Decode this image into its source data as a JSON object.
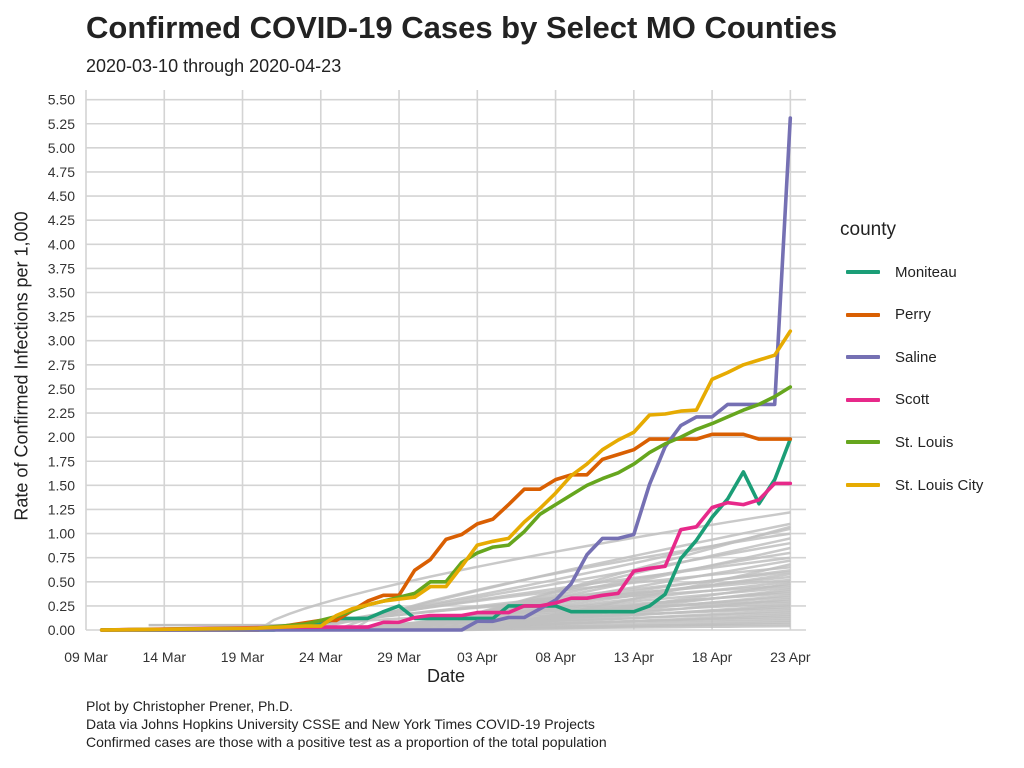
{
  "chart_data": {
    "type": "line",
    "title": "Confirmed COVID-19 Cases by Select MO Counties",
    "subtitle": "2020-03-10 through 2020-04-23",
    "xlabel": "Date",
    "ylabel": "Rate of Confirmed Infections per 1,000",
    "xlim": [
      "2020-03-09",
      "2020-04-24"
    ],
    "ylim": [
      0,
      5.6
    ],
    "x_ticks": [
      "2020-03-09",
      "2020-03-14",
      "2020-03-19",
      "2020-03-24",
      "2020-03-29",
      "2020-04-03",
      "2020-04-08",
      "2020-04-13",
      "2020-04-18",
      "2020-04-23"
    ],
    "x_tick_labels": [
      "09 Mar",
      "14 Mar",
      "19 Mar",
      "24 Mar",
      "29 Mar",
      "03 Apr",
      "08 Apr",
      "13 Apr",
      "18 Apr",
      "23 Apr"
    ],
    "y_ticks": [
      0,
      0.25,
      0.5,
      0.75,
      1,
      1.25,
      1.5,
      1.75,
      2,
      2.25,
      2.5,
      2.75,
      3,
      3.25,
      3.5,
      3.75,
      4,
      4.25,
      4.5,
      4.75,
      5,
      5.25,
      5.5
    ],
    "y_tick_labels": [
      "0.00",
      "0.25",
      "0.50",
      "0.75",
      "1.00",
      "1.25",
      "1.50",
      "1.75",
      "2.00",
      "2.25",
      "2.50",
      "2.75",
      "3.00",
      "3.25",
      "3.50",
      "3.75",
      "4.00",
      "4.25",
      "4.50",
      "4.75",
      "5.00",
      "5.25",
      "5.50"
    ],
    "grid": true,
    "legend_position": "right",
    "legend_title": "county",
    "background_series": {
      "color": "#c0c0c0",
      "note_final_values": [
        1.22,
        1.1,
        1.07,
        1.05,
        1.0,
        0.95,
        0.9,
        0.85,
        0.8,
        0.75,
        0.72,
        0.68,
        0.65,
        0.62,
        0.6,
        0.58,
        0.55,
        0.52,
        0.5,
        0.48,
        0.46,
        0.44,
        0.42,
        0.4,
        0.38,
        0.36,
        0.34,
        0.32,
        0.3,
        0.28,
        0.26,
        0.24,
        0.22,
        0.2,
        0.18,
        0.16,
        0.14,
        0.12,
        0.1,
        0.08,
        0.06,
        0.04
      ]
    },
    "series": [
      {
        "name": "Moniteau",
        "color": "#1b9e77",
        "x": [
          "2020-03-10",
          "2020-03-17",
          "2020-03-21",
          "2020-03-24",
          "2020-03-25",
          "2020-03-26",
          "2020-03-27",
          "2020-03-28",
          "2020-03-29",
          "2020-03-30",
          "2020-04-01",
          "2020-04-02",
          "2020-04-03",
          "2020-04-04",
          "2020-04-05",
          "2020-04-06",
          "2020-04-07",
          "2020-04-08",
          "2020-04-09",
          "2020-04-10",
          "2020-04-11",
          "2020-04-12",
          "2020-04-13",
          "2020-04-14",
          "2020-04-15",
          "2020-04-16",
          "2020-04-17",
          "2020-04-18",
          "2020-04-19",
          "2020-04-20",
          "2020-04-21",
          "2020-04-22",
          "2020-04-23"
        ],
        "y": [
          0,
          0,
          0,
          0.06,
          0.12,
          0.12,
          0.12,
          0.19,
          0.25,
          0.12,
          0.12,
          0.12,
          0.12,
          0.12,
          0.25,
          0.25,
          0.25,
          0.25,
          0.19,
          0.19,
          0.19,
          0.19,
          0.19,
          0.25,
          0.37,
          0.74,
          0.93,
          1.17,
          1.36,
          1.64,
          1.31,
          1.56,
          1.98
        ]
      },
      {
        "name": "Perry",
        "color": "#d95f02",
        "x": [
          "2020-03-10",
          "2020-03-20",
          "2020-03-24",
          "2020-03-25",
          "2020-03-26",
          "2020-03-27",
          "2020-03-28",
          "2020-03-29",
          "2020-03-30",
          "2020-03-31",
          "2020-04-01",
          "2020-04-02",
          "2020-04-03",
          "2020-04-04",
          "2020-04-05",
          "2020-04-06",
          "2020-04-07",
          "2020-04-08",
          "2020-04-09",
          "2020-04-10",
          "2020-04-11",
          "2020-04-12",
          "2020-04-13",
          "2020-04-14",
          "2020-04-15",
          "2020-04-16",
          "2020-04-17",
          "2020-04-18",
          "2020-04-19",
          "2020-04-20",
          "2020-04-21",
          "2020-04-22",
          "2020-04-23"
        ],
        "y": [
          0,
          0,
          0.1,
          0.1,
          0.2,
          0.3,
          0.36,
          0.36,
          0.62,
          0.73,
          0.94,
          0.99,
          1.1,
          1.15,
          1.3,
          1.46,
          1.46,
          1.56,
          1.61,
          1.61,
          1.77,
          1.82,
          1.87,
          1.98,
          1.98,
          1.98,
          1.98,
          2.03,
          2.03,
          2.03,
          1.98,
          1.98,
          1.98
        ]
      },
      {
        "name": "Saline",
        "color": "#7570b3",
        "x": [
          "2020-03-10",
          "2020-03-22",
          "2020-03-28",
          "2020-04-02",
          "2020-04-03",
          "2020-04-04",
          "2020-04-05",
          "2020-04-06",
          "2020-04-07",
          "2020-04-08",
          "2020-04-09",
          "2020-04-10",
          "2020-04-11",
          "2020-04-12",
          "2020-04-13",
          "2020-04-14",
          "2020-04-15",
          "2020-04-16",
          "2020-04-17",
          "2020-04-18",
          "2020-04-19",
          "2020-04-20",
          "2020-04-21",
          "2020-04-22",
          "2020-04-23"
        ],
        "y": [
          0,
          0,
          0,
          0,
          0.09,
          0.09,
          0.13,
          0.13,
          0.22,
          0.31,
          0.48,
          0.78,
          0.95,
          0.95,
          0.99,
          1.51,
          1.9,
          2.12,
          2.21,
          2.21,
          2.34,
          2.34,
          2.34,
          2.34,
          5.31
        ]
      },
      {
        "name": "Scott",
        "color": "#e7298a",
        "x": [
          "2020-03-10",
          "2020-03-22",
          "2020-03-27",
          "2020-03-28",
          "2020-03-29",
          "2020-03-30",
          "2020-03-31",
          "2020-04-02",
          "2020-04-03",
          "2020-04-04",
          "2020-04-05",
          "2020-04-06",
          "2020-04-07",
          "2020-04-08",
          "2020-04-09",
          "2020-04-10",
          "2020-04-11",
          "2020-04-12",
          "2020-04-13",
          "2020-04-14",
          "2020-04-15",
          "2020-04-16",
          "2020-04-17",
          "2020-04-18",
          "2020-04-19",
          "2020-04-20",
          "2020-04-21",
          "2020-04-22",
          "2020-04-23"
        ],
        "y": [
          0,
          0.03,
          0.03,
          0.08,
          0.08,
          0.13,
          0.15,
          0.15,
          0.18,
          0.18,
          0.18,
          0.25,
          0.25,
          0.28,
          0.33,
          0.33,
          0.36,
          0.38,
          0.61,
          0.64,
          0.66,
          1.04,
          1.07,
          1.27,
          1.32,
          1.3,
          1.35,
          1.52,
          1.52
        ]
      },
      {
        "name": "St. Louis",
        "color": "#66a61e",
        "x": [
          "2020-03-10",
          "2020-03-20",
          "2020-03-23",
          "2020-03-24",
          "2020-03-25",
          "2020-03-26",
          "2020-03-27",
          "2020-03-28",
          "2020-03-29",
          "2020-03-30",
          "2020-03-31",
          "2020-04-01",
          "2020-04-02",
          "2020-04-03",
          "2020-04-04",
          "2020-04-05",
          "2020-04-06",
          "2020-04-07",
          "2020-04-08",
          "2020-04-09",
          "2020-04-10",
          "2020-04-11",
          "2020-04-12",
          "2020-04-13",
          "2020-04-14",
          "2020-04-15",
          "2020-04-16",
          "2020-04-17",
          "2020-04-18",
          "2020-04-19",
          "2020-04-20",
          "2020-04-21",
          "2020-04-22",
          "2020-04-23"
        ],
        "y": [
          0,
          0.02,
          0.06,
          0.1,
          0.14,
          0.2,
          0.26,
          0.3,
          0.34,
          0.38,
          0.5,
          0.5,
          0.7,
          0.8,
          0.86,
          0.88,
          1.02,
          1.2,
          1.3,
          1.4,
          1.5,
          1.57,
          1.63,
          1.72,
          1.84,
          1.93,
          2.0,
          2.08,
          2.14,
          2.21,
          2.28,
          2.34,
          2.42,
          2.52
        ]
      },
      {
        "name": "St. Louis City",
        "color": "#e6ab02",
        "x": [
          "2020-03-10",
          "2020-03-20",
          "2020-03-23",
          "2020-03-24",
          "2020-03-25",
          "2020-03-26",
          "2020-03-27",
          "2020-03-28",
          "2020-03-29",
          "2020-03-30",
          "2020-03-31",
          "2020-04-01",
          "2020-04-02",
          "2020-04-03",
          "2020-04-04",
          "2020-04-05",
          "2020-04-06",
          "2020-04-07",
          "2020-04-08",
          "2020-04-09",
          "2020-04-10",
          "2020-04-11",
          "2020-04-12",
          "2020-04-13",
          "2020-04-14",
          "2020-04-15",
          "2020-04-16",
          "2020-04-17",
          "2020-04-18",
          "2020-04-19",
          "2020-04-20",
          "2020-04-21",
          "2020-04-22",
          "2020-04-23"
        ],
        "y": [
          0,
          0.02,
          0.04,
          0.04,
          0.15,
          0.22,
          0.26,
          0.3,
          0.32,
          0.34,
          0.45,
          0.45,
          0.66,
          0.88,
          0.92,
          0.95,
          1.12,
          1.26,
          1.42,
          1.6,
          1.72,
          1.87,
          1.97,
          2.05,
          2.23,
          2.24,
          2.27,
          2.28,
          2.6,
          2.67,
          2.75,
          2.8,
          2.85,
          3.1
        ]
      }
    ],
    "caption_lines": [
      "Plot by Christopher Prener, Ph.D.",
      "Data via Johns Hopkins University CSSE and New York Times COVID-19 Projects",
      "Confirmed cases are those with a positive test as a proportion of the total population"
    ]
  }
}
